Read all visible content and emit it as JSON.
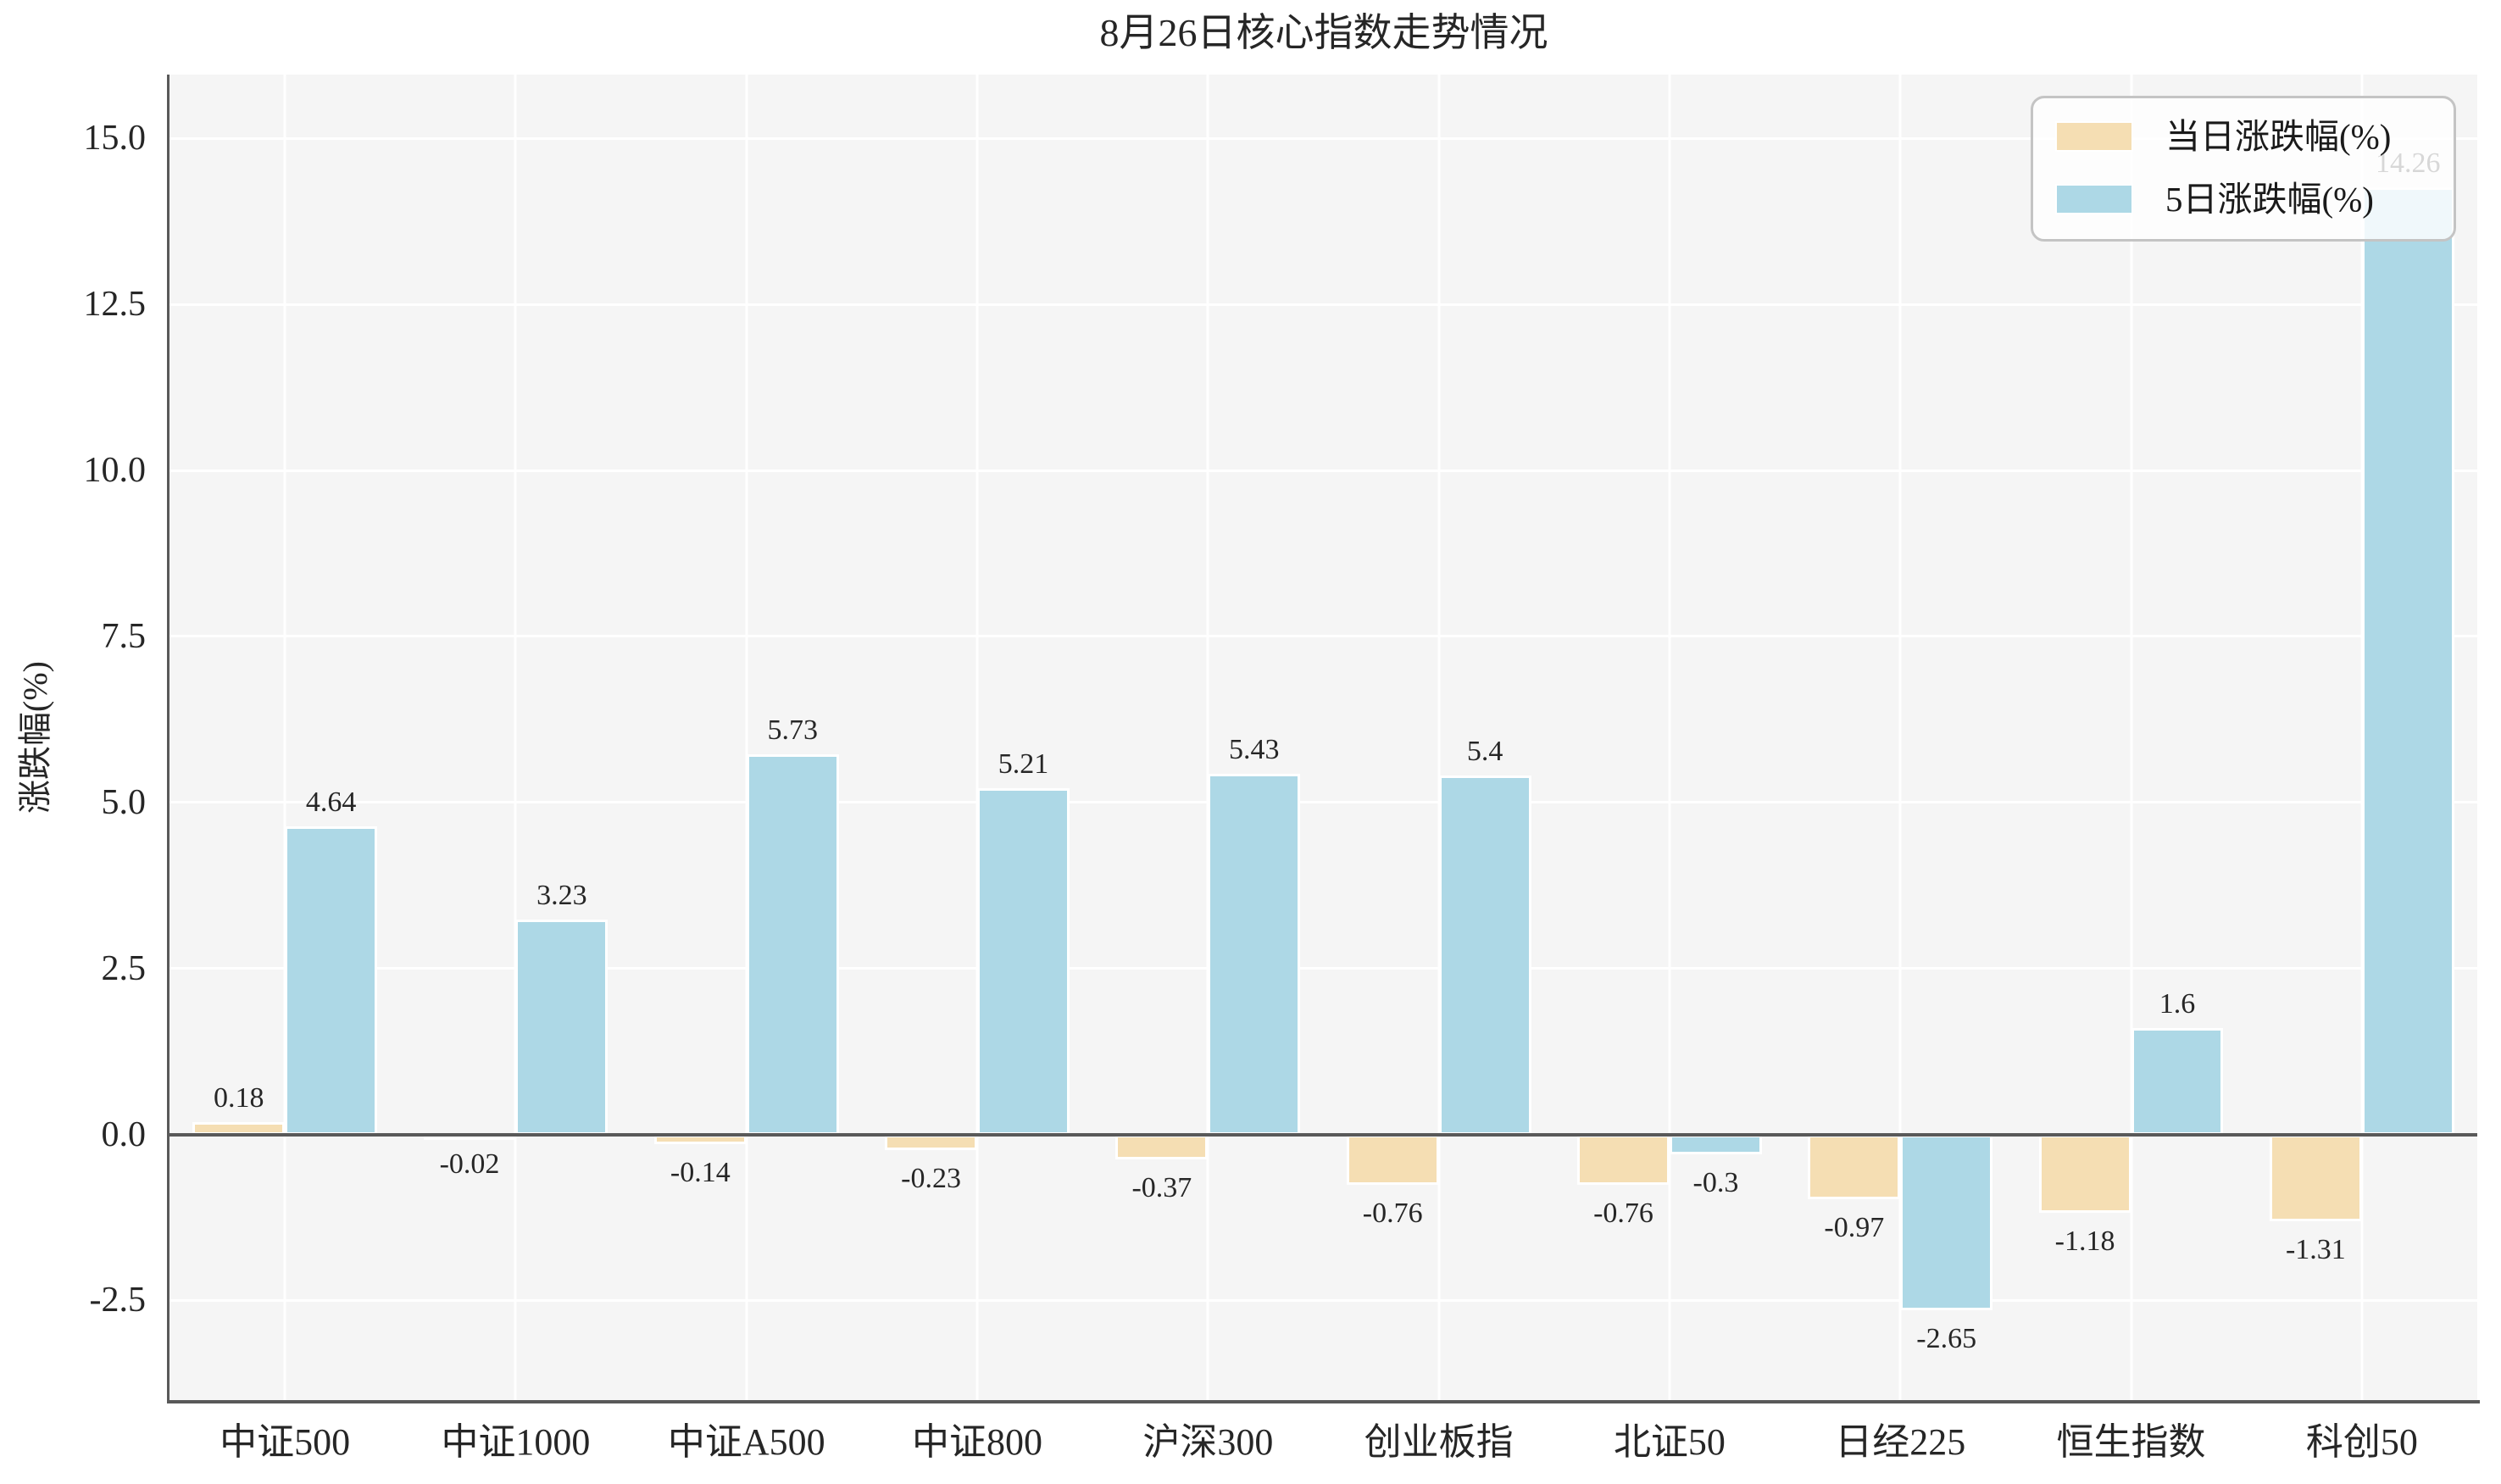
{
  "chart_data": {
    "type": "bar",
    "title": "8月26日核心指数走势情况",
    "xlabel": "",
    "ylabel": "涨跌幅(%)",
    "categories": [
      "中证500",
      "中证1000",
      "中证A500",
      "中证800",
      "沪深300",
      "创业板指",
      "北证50",
      "日经225",
      "恒生指数",
      "科创50"
    ],
    "series": [
      {
        "name": "当日涨跌幅(%)",
        "color": "#f5deb3",
        "values": [
          0.18,
          -0.02,
          -0.14,
          -0.23,
          -0.37,
          -0.76,
          -0.76,
          -0.97,
          -1.18,
          -1.31
        ],
        "labels": [
          "0.18",
          "-0.02",
          "-0.14",
          "-0.23",
          "-0.37",
          "-0.76",
          "-0.76",
          "-0.97",
          "-1.18",
          "-1.31"
        ]
      },
      {
        "name": "5日涨跌幅(%)",
        "color": "#add8e6",
        "values": [
          4.64,
          3.23,
          5.73,
          5.21,
          5.43,
          5.4,
          -0.3,
          -2.65,
          1.6,
          14.26
        ],
        "labels": [
          "4.64",
          "3.23",
          "5.73",
          "5.21",
          "5.43",
          "5.4",
          "-0.3",
          "-2.65",
          "1.6",
          "14.26"
        ]
      }
    ],
    "ylim": [
      -4.0,
      15.96
    ],
    "yticks": [
      15.0,
      12.5,
      10.0,
      7.5,
      5.0,
      2.5,
      0.0,
      -2.5
    ],
    "ytick_labels": [
      "15.0",
      "12.5",
      "10.0",
      "7.5",
      "5.0",
      "2.5",
      "0.0",
      "-2.5"
    ],
    "grid": true,
    "legend_position": "upper right",
    "colors": {
      "plot_background": "#f5f5f5",
      "grid_line": "#ffffff",
      "zero_line": "#595959",
      "spine": "#595959",
      "text": "#262626",
      "legend_border": "#c4c4c4"
    }
  }
}
